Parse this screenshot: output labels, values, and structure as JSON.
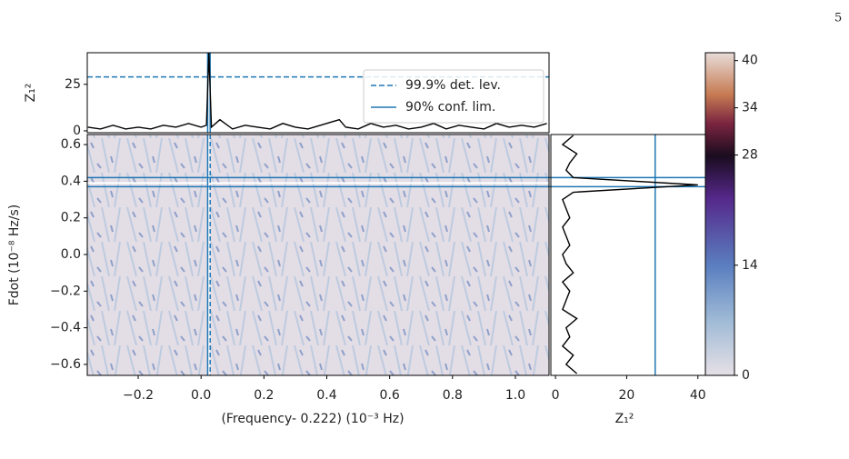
{
  "page_number": "5",
  "chart_data": [
    {
      "type": "line",
      "ylabel": "Z₁²",
      "xlim": [
        -0.362,
        1.107
      ],
      "ylim": [
        -1,
        42
      ],
      "yticks": [
        0,
        25
      ],
      "x": [
        -0.36,
        -0.32,
        -0.28,
        -0.24,
        -0.2,
        -0.16,
        -0.12,
        -0.08,
        -0.04,
        0.0,
        0.017,
        0.025,
        0.033,
        0.06,
        0.1,
        0.14,
        0.18,
        0.22,
        0.26,
        0.3,
        0.34,
        0.38,
        0.42,
        0.44,
        0.46,
        0.5,
        0.54,
        0.58,
        0.62,
        0.66,
        0.7,
        0.74,
        0.78,
        0.82,
        0.86,
        0.9,
        0.94,
        0.98,
        1.02,
        1.06,
        1.1
      ],
      "values": [
        2,
        1,
        3,
        1,
        2,
        1,
        3,
        2,
        4,
        2,
        3,
        42,
        2,
        6,
        1,
        3,
        2,
        1,
        4,
        2,
        1,
        3,
        5,
        6,
        2,
        1,
        4,
        2,
        3,
        1,
        2,
        4,
        1,
        3,
        2,
        1,
        4,
        2,
        3,
        2,
        4
      ],
      "color": "#000000",
      "detection_level": {
        "name": "99.9% det. lev.",
        "value": 29,
        "color": "#1f77b4"
      },
      "confidence_limits": {
        "name": "90% conf. lim.",
        "values": [
          0.021,
          0.029
        ],
        "color": "#1f77b4"
      },
      "legend": "upper right"
    },
    {
      "type": "heatmap",
      "xlabel": "(Frequency- 0.222) (10⁻³ Hz)",
      "ylabel": "Fdot (10⁻⁸ Hz/s)",
      "xlim": [
        -0.362,
        1.107
      ],
      "ylim": [
        -0.66,
        0.655
      ],
      "xticks": [
        {
          "value": -0.2,
          "label": "−0.2"
        },
        {
          "value": 0,
          "label": "0.0"
        },
        0.2,
        0.4,
        0.6,
        0.8,
        {
          "value": 1,
          "label": "1.0"
        }
      ],
      "yticks": [
        0.6,
        0.4,
        0.2,
        {
          "value": 0,
          "label": "0.0"
        },
        {
          "value": -0.2,
          "label": "−0.2"
        },
        {
          "value": -0.4,
          "label": "−0.4"
        },
        {
          "value": -0.6,
          "label": "−0.6"
        }
      ],
      "frequency_limits": [
        0.021,
        0.029
      ],
      "fdot_limits": [
        0.37,
        0.42
      ],
      "best": [
        0.025,
        0.39
      ],
      "color": "#1f77b4"
    },
    {
      "type": "line",
      "orientation": "vertical",
      "xlabel": "Z₁²",
      "xlim": [
        -1.3,
        42.1
      ],
      "ylim": [
        -0.66,
        0.655
      ],
      "xticks": [
        0,
        20,
        40
      ],
      "y": [
        -0.65,
        -0.6,
        -0.55,
        -0.5,
        -0.45,
        -0.4,
        -0.35,
        -0.3,
        -0.25,
        -0.2,
        -0.15,
        -0.1,
        -0.05,
        0.0,
        0.05,
        0.1,
        0.15,
        0.2,
        0.25,
        0.3,
        0.34,
        0.38,
        0.42,
        0.46,
        0.5,
        0.55,
        0.6,
        0.65
      ],
      "values": [
        6,
        3,
        5,
        2,
        4,
        3,
        6,
        2,
        3,
        4,
        2,
        5,
        3,
        2,
        4,
        3,
        2,
        4,
        3,
        2,
        5,
        40,
        5,
        3,
        4,
        6,
        2,
        5
      ],
      "color": "#000000",
      "detection_level": {
        "value": 28,
        "color": "#1f77b4"
      }
    },
    {
      "type": "colorbar",
      "lim": [
        0,
        41
      ],
      "ticks": [
        0,
        14,
        28,
        34,
        40
      ]
    }
  ]
}
